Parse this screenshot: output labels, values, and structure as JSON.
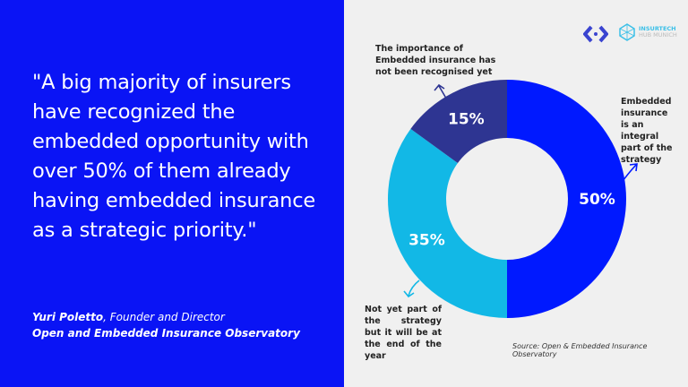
{
  "quote": "\"A big majority of insurers have recognized the embedded opportunity with over 50% of them already having embedded insurance as a strategic priority.\"",
  "author": {
    "name": "Yuri Poletto",
    "role": ", Founder and Director",
    "org": "Open and Embedded Insurance Observatory"
  },
  "logos": {
    "insurtech_line1": "INSURTECH",
    "insurtech_line2": "HUB MUNICH"
  },
  "source": "Source: Open & Embedded Insurance Observatory",
  "chart_data": {
    "type": "pie",
    "donut": true,
    "slices": [
      {
        "label": "Embedded insurance is an integral part of the strategy",
        "value": 50,
        "display": "50%",
        "color": "#0019ff"
      },
      {
        "label": "Not yet part of the strategy but it will be at the end of the year",
        "value": 35,
        "display": "35%",
        "color": "#12b8e6"
      },
      {
        "label": "The importance of Embedded insurance has not been recognised yet",
        "value": 15,
        "display": "15%",
        "color": "#2e3592"
      }
    ]
  }
}
